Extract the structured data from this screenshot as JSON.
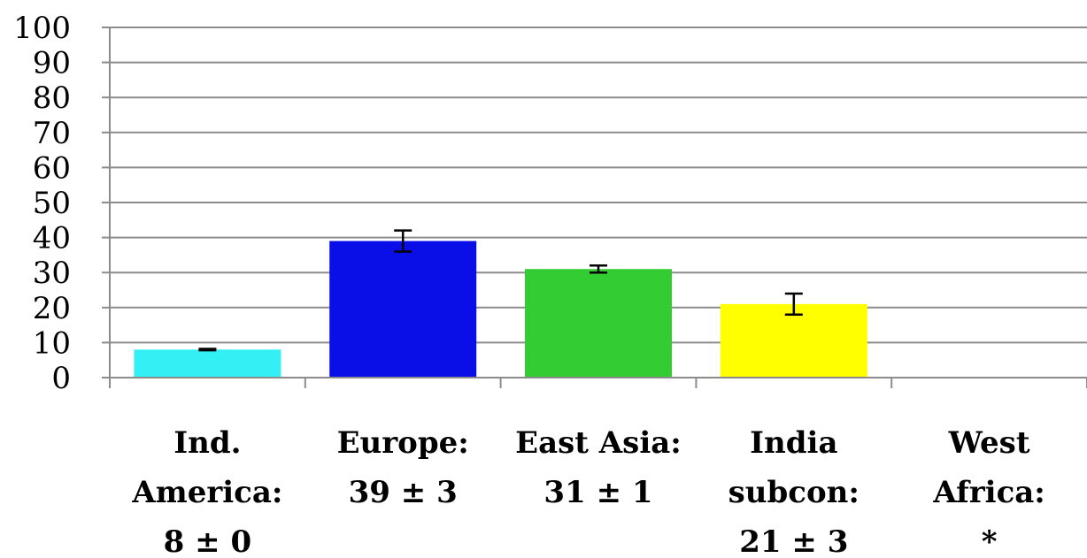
{
  "chart_data": {
    "type": "bar",
    "categories": [
      [
        "Ind.",
        "America:",
        "8 ± 0"
      ],
      [
        "Europe:",
        "39 ± 3"
      ],
      [
        "East Asia:",
        "31 ± 1"
      ],
      [
        "India",
        "subcon:",
        "21 ± 3"
      ],
      [
        "West",
        "Africa:",
        "*"
      ]
    ],
    "values": [
      8,
      39,
      31,
      21,
      null
    ],
    "errors": [
      0.2,
      3,
      1,
      3,
      null
    ],
    "colors": [
      "#33f0f5",
      "#0a0fe8",
      "#33cc33",
      "#ffff00",
      null
    ],
    "ylim": [
      0,
      100
    ],
    "yticks": [
      "0",
      "10",
      "20",
      "30",
      "40",
      "50",
      "60",
      "70",
      "80",
      "90",
      "100"
    ],
    "grid": true,
    "title": "",
    "xlabel": "",
    "ylabel": ""
  }
}
